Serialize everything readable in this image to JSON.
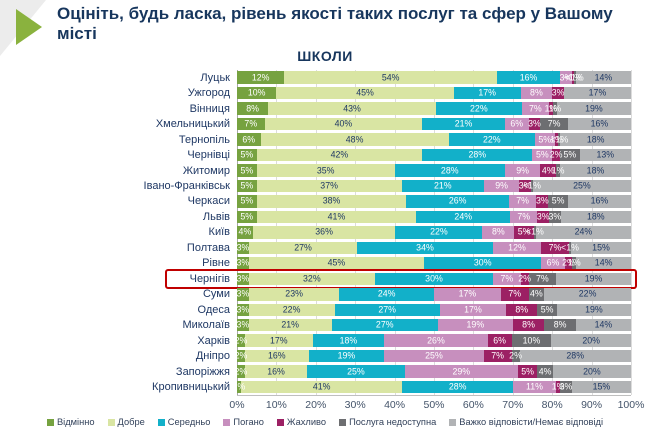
{
  "slide": {
    "title": "Оцініть, будь ласка, рівень якості таких послуг та сфер у Вашому місті"
  },
  "chart_data": {
    "type": "bar",
    "orientation": "horizontal",
    "stacked": true,
    "title": "ШКОЛИ",
    "xlabel": "",
    "ylabel": "",
    "xlim": [
      0,
      100
    ],
    "x_ticks": [
      "0%",
      "10%",
      "20%",
      "30%",
      "40%",
      "50%",
      "60%",
      "70%",
      "80%",
      "90%",
      "100%"
    ],
    "grid": true,
    "legend_position": "bottom",
    "value_note": "values of 0.5 are displayed as <1%",
    "highlighted_category": "Чернігів",
    "categories": [
      "Луцьк",
      "Ужгород",
      "Вінниця",
      "Хмельницький",
      "Тернопіль",
      "Чернівці",
      "Житомир",
      "Івано-Франківськ",
      "Черкаси",
      "Львів",
      "Київ",
      "Полтава",
      "Рівне",
      "Чернігів",
      "Суми",
      "Одеса",
      "Миколаїв",
      "Харків",
      "Дніпро",
      "Запоріжжя",
      "Кропивницький"
    ],
    "series": [
      {
        "name": "Відмінно",
        "color": "#76a240",
        "values": [
          12,
          10,
          8,
          7,
          6,
          5,
          5,
          5,
          5,
          5,
          4,
          3,
          3,
          3,
          3,
          3,
          3,
          2,
          2,
          2,
          1
        ]
      },
      {
        "name": "Добре",
        "color": "#d9e5a3",
        "values": [
          54,
          45,
          43,
          40,
          48,
          42,
          35,
          37,
          38,
          41,
          36,
          27,
          45,
          32,
          23,
          22,
          21,
          17,
          16,
          16,
          41
        ]
      },
      {
        "name": "Середньо",
        "color": "#12b0c9",
        "values": [
          16,
          17,
          22,
          21,
          22,
          28,
          28,
          21,
          26,
          24,
          22,
          34,
          30,
          30,
          24,
          27,
          27,
          18,
          19,
          25,
          28
        ]
      },
      {
        "name": "Погано",
        "color": "#c78fbe",
        "values": [
          3,
          8,
          7,
          6,
          5,
          5,
          9,
          9,
          7,
          7,
          8,
          12,
          6,
          7,
          17,
          17,
          19,
          26,
          25,
          29,
          11
        ]
      },
      {
        "name": "Жахливо",
        "color": "#9c2064",
        "values": [
          0.5,
          3,
          1,
          3,
          1,
          2,
          4,
          3,
          3,
          3,
          5,
          7,
          2,
          2,
          7,
          8,
          8,
          6,
          7,
          5,
          1
        ]
      },
      {
        "name": "Послуга недоступна",
        "color": "#6d6e71",
        "values": [
          0.5,
          0,
          1,
          7,
          0.5,
          5,
          1,
          0.5,
          5,
          3,
          0.5,
          0.5,
          1,
          7,
          4,
          5,
          8,
          10,
          2,
          4,
          3
        ]
      },
      {
        "name": "Важко відповісти/Немає відповіді",
        "color": "#b1b3b5",
        "values": [
          14,
          17,
          19,
          16,
          18,
          13,
          18,
          25,
          16,
          18,
          24,
          15,
          14,
          19,
          22,
          19,
          14,
          20,
          28,
          20,
          15
        ]
      }
    ]
  },
  "theme": {
    "title_color": "#17365d",
    "category_label_color": "#1f3864",
    "axis_text_color": "#44546a",
    "grid_color": "#dcdcdc",
    "axis_line_color": "#a8a8a8",
    "highlight_box_color": "#c00000",
    "bullet_green": "#8ab23e",
    "corner_gray": "#ececec",
    "segment_label_light": "#ffffff",
    "segment_label_dark": "#1f3864"
  }
}
